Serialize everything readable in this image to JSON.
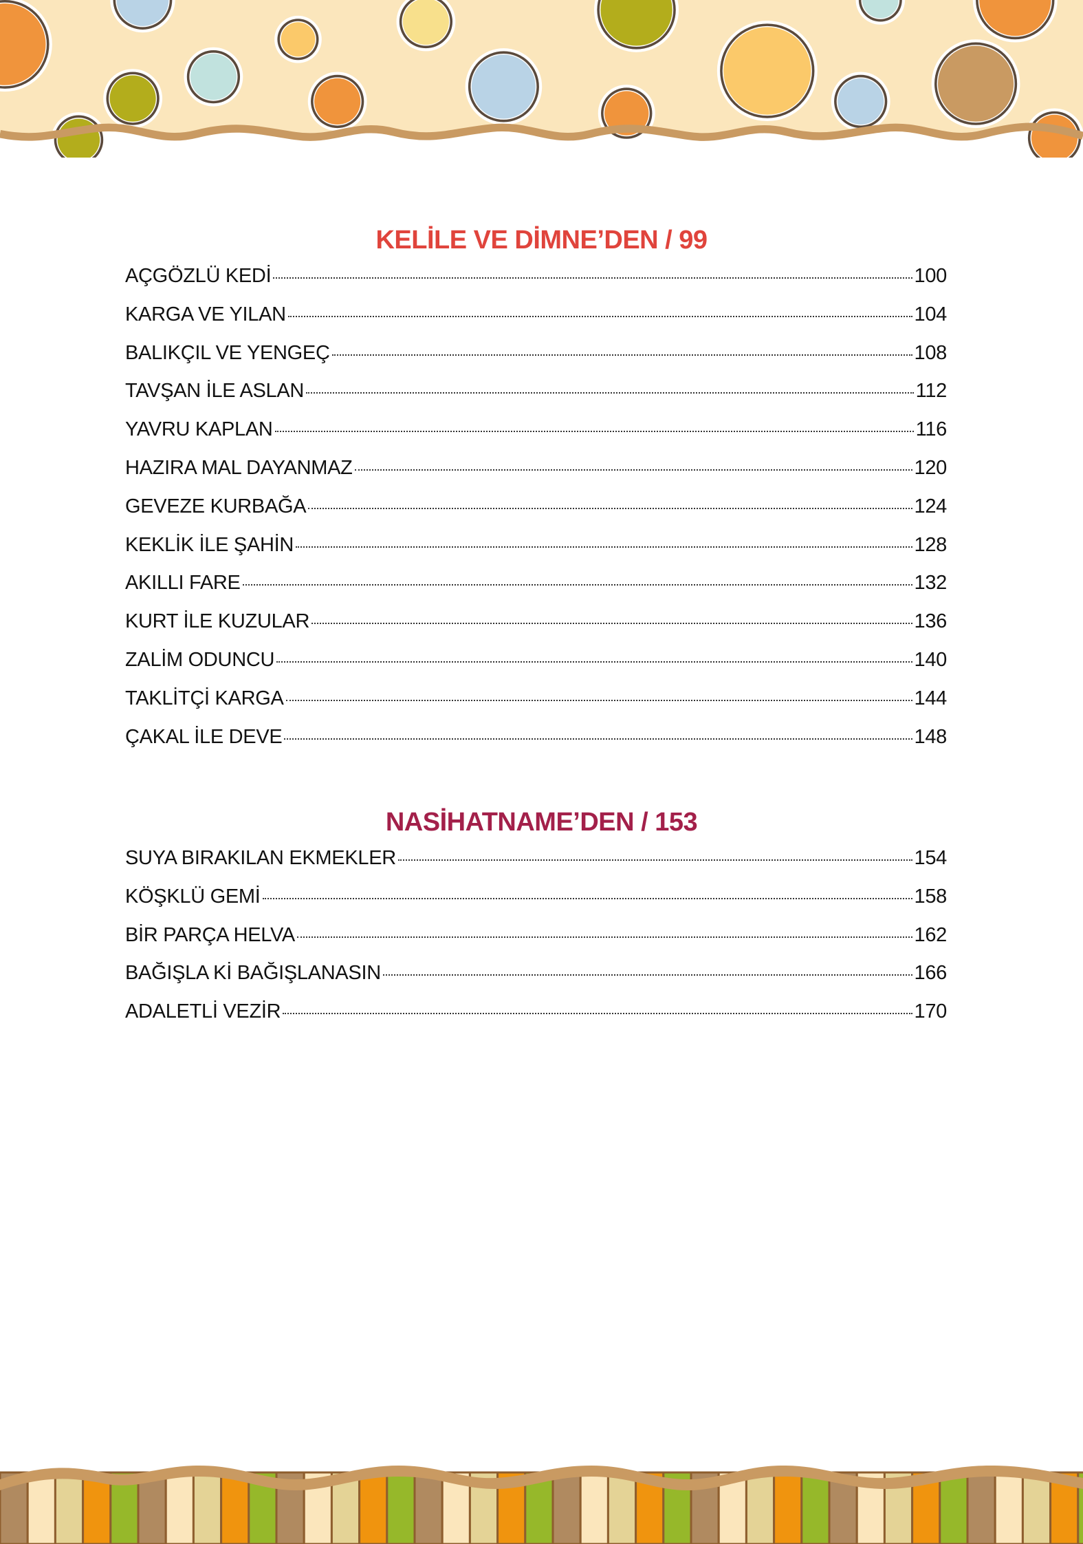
{
  "colors": {
    "section1_heading": "#e0443c",
    "section2_heading": "#a3204a",
    "band_background": "#fbe6bc",
    "wave_border": "#c99a62"
  },
  "sections": [
    {
      "heading": "KELİLE VE DİMNE’DEN / 99",
      "items": [
        {
          "title": "AÇGÖZLÜ KEDİ",
          "page": "100"
        },
        {
          "title": "KARGA VE YILAN",
          "page": "104"
        },
        {
          "title": "BALIKÇIL VE YENGEÇ",
          "page": "108"
        },
        {
          "title": "TAVŞAN İLE ASLAN",
          "page": "112"
        },
        {
          "title": "YAVRU KAPLAN",
          "page": "116"
        },
        {
          "title": "HAZIRA MAL DAYANMAZ",
          "page": "120"
        },
        {
          "title": "GEVEZE KURBAĞA",
          "page": "124"
        },
        {
          "title": "KEKLİK İLE ŞAHİN",
          "page": "128"
        },
        {
          "title": "AKILLI FARE",
          "page": "132"
        },
        {
          "title": "KURT İLE KUZULAR",
          "page": "136"
        },
        {
          "title": "ZALİM ODUNCU",
          "page": "140"
        },
        {
          "title": "TAKLİTÇİ KARGA",
          "page": "144"
        },
        {
          "title": "ÇAKAL İLE DEVE",
          "page": "148"
        }
      ]
    },
    {
      "heading": "NASİHATNAME’DEN / 153",
      "items": [
        {
          "title": "SUYA BIRAKILAN EKMEKLER",
          "page": "154"
        },
        {
          "title": "KÖŞKLÜ GEMİ",
          "page": "158"
        },
        {
          "title": "BİR PARÇA HELVA",
          "page": "162"
        },
        {
          "title": "BAĞIŞLA Kİ BAĞIŞLANASIN",
          "page": "166"
        },
        {
          "title": "ADALETLİ VEZİR",
          "page": "170"
        }
      ]
    }
  ]
}
